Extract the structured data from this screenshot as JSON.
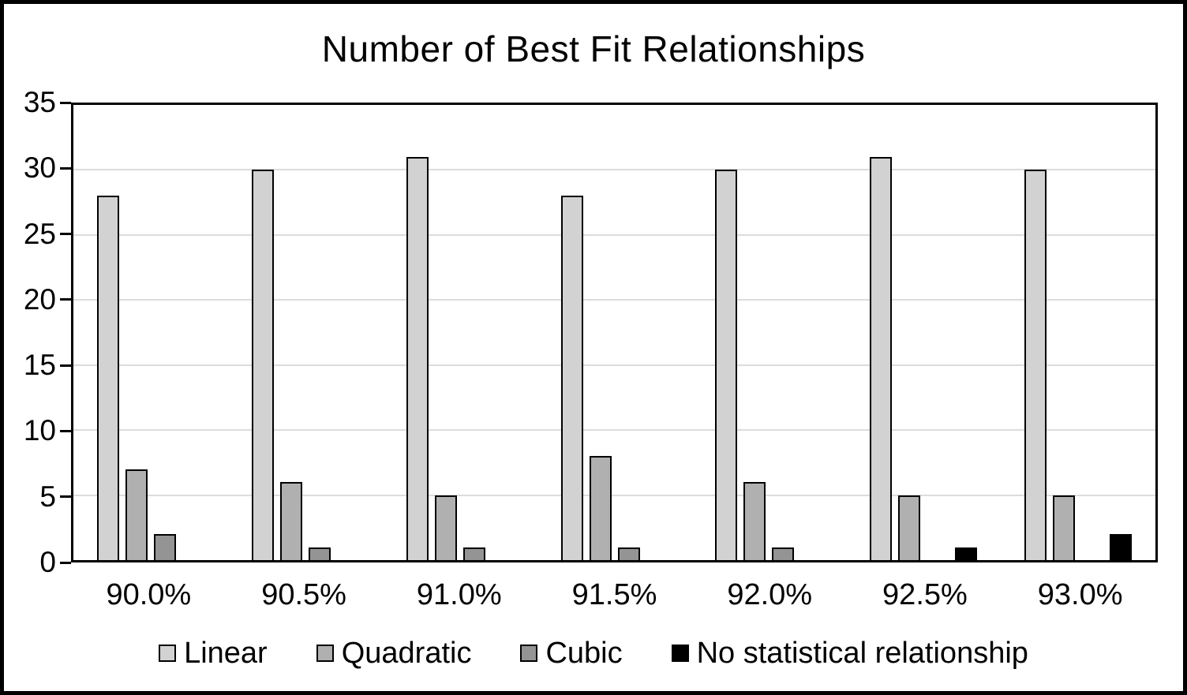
{
  "window": {
    "background_color": "#ffffff",
    "frame_color": "#000000"
  },
  "chart_data": {
    "type": "bar",
    "title": "Number of Best Fit Relationships",
    "categories": [
      "90.0%",
      "90.5%",
      "91.0%",
      "91.5%",
      "92.0%",
      "92.5%",
      "93.0%"
    ],
    "series": [
      {
        "name": "Linear",
        "color": "#d2d2d2",
        "values": [
          28,
          30,
          31,
          28,
          30,
          31,
          30
        ]
      },
      {
        "name": "Quadratic",
        "color": "#b0b0b0",
        "values": [
          7,
          6,
          5,
          8,
          6,
          5,
          5
        ]
      },
      {
        "name": "Cubic",
        "color": "#949494",
        "values": [
          2,
          1,
          1,
          1,
          1,
          0,
          0
        ]
      },
      {
        "name": "No statistical relationship",
        "color": "#000000",
        "values": [
          0,
          0,
          0,
          0,
          0,
          1,
          2
        ]
      }
    ],
    "xlabel": "",
    "ylabel": "",
    "ylim": [
      0,
      35
    ],
    "yticks": [
      0,
      5,
      10,
      15,
      20,
      25,
      30,
      35
    ],
    "grid": true,
    "gridline_color": "#dcdcdc",
    "bar_border_color": "#000000",
    "plot_border_color": "#000000",
    "legend_position": "bottom",
    "legend": [
      "Linear",
      "Quadratic",
      "Cubic",
      "No statistical relationship"
    ]
  }
}
